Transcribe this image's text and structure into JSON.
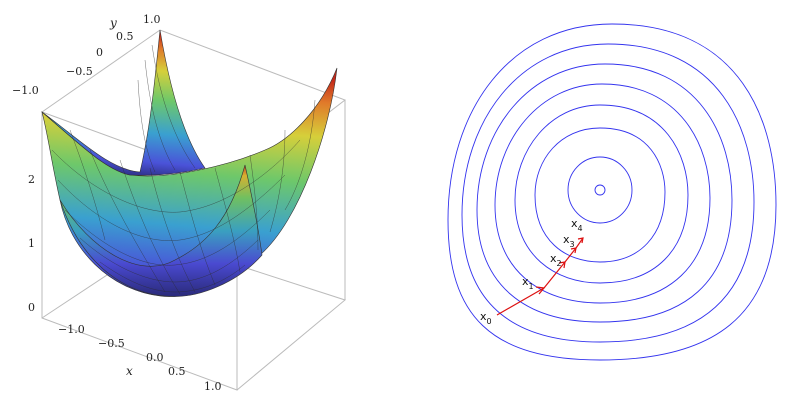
{
  "surface_plot": {
    "x_axis": {
      "label": "x",
      "ticks": [
        "−1.0",
        "−0.5",
        "0.0",
        "0.5",
        "1.0"
      ]
    },
    "y_axis": {
      "label": "y",
      "ticks": [
        "1.0",
        "0.5",
        "0",
        "−0.5",
        "−1.0"
      ]
    },
    "z_axis": {
      "ticks": [
        "0",
        "1",
        "2"
      ]
    },
    "surface_colors": [
      "#2a2a7a",
      "#4a52d8",
      "#3aa0d0",
      "#6ec86a",
      "#d6cf3a",
      "#e07a2a",
      "#c42a1a"
    ]
  },
  "contour_plot": {
    "ring_color": "#3333ee",
    "arrow_color": "#dd1111",
    "iterates": [
      {
        "base": "x",
        "sub": "0"
      },
      {
        "base": "x",
        "sub": "1"
      },
      {
        "base": "x",
        "sub": "2"
      },
      {
        "base": "x",
        "sub": "3"
      },
      {
        "base": "x",
        "sub": "4"
      }
    ]
  }
}
